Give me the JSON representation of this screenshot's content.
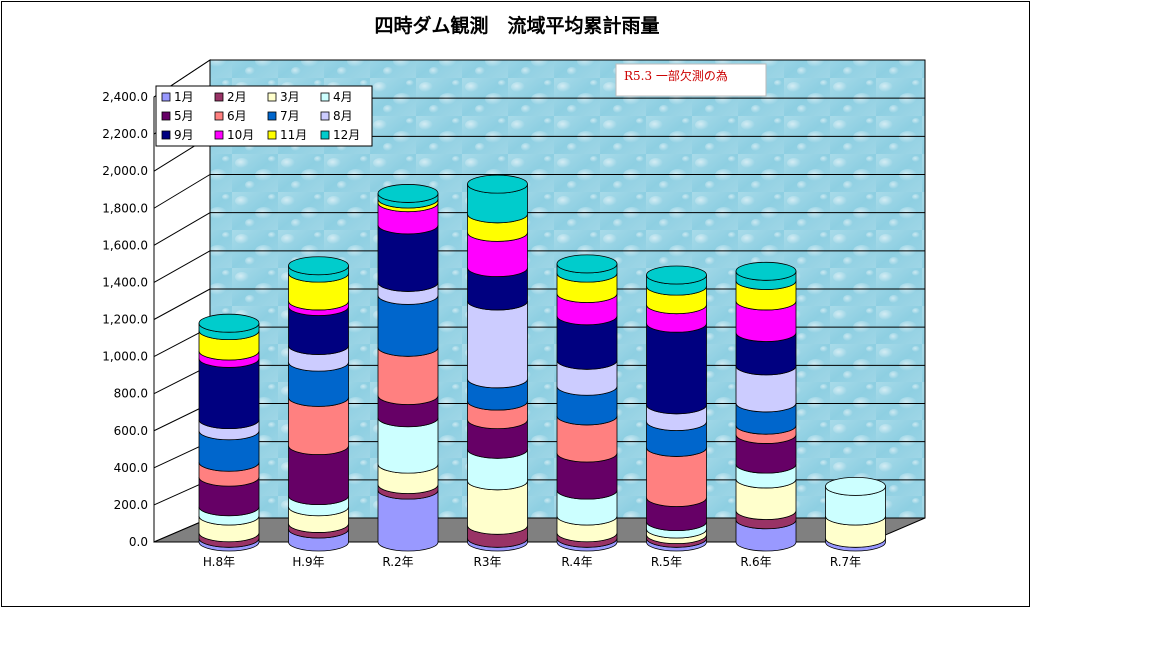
{
  "chart_data": {
    "type": "bar",
    "subtype": "stacked-3d-cylinder",
    "title": "四時ダム観測　流域平均累計雨量",
    "categories": [
      "H.8年",
      "H.9年",
      "R.2年",
      "R3年",
      "R.4年",
      "R.5年",
      "R.6年",
      "R.7年"
    ],
    "ylim": [
      0,
      2400
    ],
    "yticks": [
      "0.0",
      "200.0",
      "400.0",
      "600.0",
      "800.0",
      "1,000.0",
      "1,200.0",
      "1,400.0",
      "1,600.0",
      "1,800.0",
      "2,000.0",
      "2,200.0",
      "2,400.0"
    ],
    "grid": true,
    "legend_position": "top-left",
    "annotation": "R5.3 一部欠測の為",
    "series": [
      {
        "name": "1月",
        "color": "#9999ff",
        "values": [
          20,
          70,
          280,
          20,
          20,
          20,
          120,
          20
        ]
      },
      {
        "name": "2月",
        "color": "#993366",
        "values": [
          30,
          30,
          30,
          70,
          30,
          20,
          50,
          0
        ]
      },
      {
        "name": "3月",
        "color": "#ffffcc",
        "values": [
          90,
          90,
          110,
          240,
          90,
          30,
          170,
          120
        ]
      },
      {
        "name": "4月",
        "color": "#ccffff",
        "values": [
          50,
          60,
          250,
          170,
          140,
          40,
          80,
          160
        ]
      },
      {
        "name": "5月",
        "color": "#660066",
        "values": [
          160,
          270,
          120,
          160,
          200,
          130,
          160,
          0
        ]
      },
      {
        "name": "6月",
        "color": "#ff8080",
        "values": [
          80,
          260,
          260,
          100,
          200,
          270,
          50,
          0
        ]
      },
      {
        "name": "7月",
        "color": "#0066cc",
        "values": [
          170,
          190,
          280,
          120,
          160,
          140,
          120,
          0
        ]
      },
      {
        "name": "8月",
        "color": "#ccccff",
        "values": [
          60,
          90,
          70,
          420,
          140,
          90,
          200,
          0
        ]
      },
      {
        "name": "9月",
        "color": "#000080",
        "values": [
          330,
          210,
          310,
          180,
          240,
          440,
          180,
          0
        ]
      },
      {
        "name": "10月",
        "color": "#ff00ff",
        "values": [
          40,
          30,
          120,
          190,
          120,
          100,
          170,
          0
        ]
      },
      {
        "name": "11月",
        "color": "#ffff00",
        "values": [
          110,
          150,
          20,
          100,
          110,
          100,
          110,
          0
        ]
      },
      {
        "name": "12月",
        "color": "#00cccc",
        "values": [
          40,
          40,
          30,
          160,
          50,
          60,
          50,
          0
        ]
      }
    ]
  }
}
